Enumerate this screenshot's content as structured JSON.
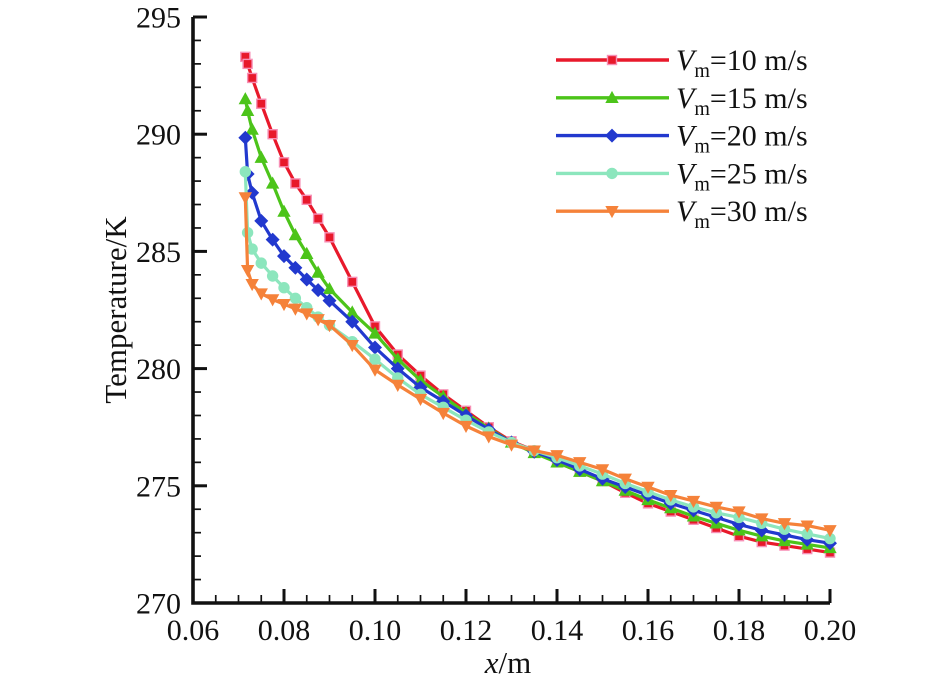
{
  "chart_data": {
    "type": "line",
    "title": "",
    "xlabel_var": "x",
    "xlabel_unit": "/m",
    "ylabel": "Temperature/K",
    "xlim": [
      0.06,
      0.2
    ],
    "ylim": [
      270,
      295
    ],
    "grid": "off",
    "legend_position": "top-right",
    "x_major_ticks": [
      0.06,
      0.08,
      0.1,
      0.12,
      0.14,
      0.16,
      0.18,
      0.2
    ],
    "x_tick_labels": [
      "0.06",
      "0.08",
      "0.10",
      "0.12",
      "0.14",
      "0.16",
      "0.18",
      "0.20"
    ],
    "x_minor_step": 0.005,
    "y_major_ticks": [
      270,
      275,
      280,
      285,
      290,
      295
    ],
    "y_tick_labels": [
      "270",
      "275",
      "280",
      "285",
      "290",
      "295"
    ],
    "y_minor_step": 1,
    "x": [
      0.0715,
      0.072,
      0.073,
      0.075,
      0.0775,
      0.08,
      0.0825,
      0.085,
      0.0875,
      0.09,
      0.095,
      0.1,
      0.105,
      0.11,
      0.115,
      0.12,
      0.125,
      0.13,
      0.135,
      0.14,
      0.145,
      0.15,
      0.155,
      0.16,
      0.165,
      0.17,
      0.175,
      0.18,
      0.185,
      0.19,
      0.195,
      0.2
    ],
    "series": [
      {
        "name": "Vm=10 m/s",
        "label_var": "V",
        "label_sub": "m",
        "label_rest": "=10 m/s",
        "color": "#E8192B",
        "marker": "square",
        "marker_edge": "#F78FB5",
        "values": [
          293.3,
          293.0,
          292.4,
          291.3,
          290.0,
          288.8,
          287.9,
          287.2,
          286.4,
          285.6,
          283.7,
          281.8,
          280.6,
          279.7,
          278.9,
          278.2,
          277.5,
          276.9,
          276.5,
          276.0,
          275.6,
          275.2,
          274.7,
          274.25,
          273.9,
          273.55,
          273.2,
          272.85,
          272.6,
          272.45,
          272.3,
          272.15
        ]
      },
      {
        "name": "Vm=15 m/s",
        "label_var": "V",
        "label_sub": "m",
        "label_rest": "=15 m/s",
        "color": "#4CC41A",
        "marker": "triangle-up",
        "marker_edge": "#4CC41A",
        "values": [
          291.5,
          291.0,
          290.2,
          289.0,
          287.9,
          286.7,
          285.7,
          284.9,
          284.1,
          283.4,
          282.4,
          281.5,
          280.4,
          279.5,
          278.8,
          278.1,
          277.45,
          276.85,
          276.4,
          276.0,
          275.6,
          275.2,
          274.8,
          274.4,
          274.05,
          273.7,
          273.4,
          273.1,
          272.85,
          272.65,
          272.5,
          272.35
        ]
      },
      {
        "name": "Vm=20 m/s",
        "label_var": "V",
        "label_sub": "m",
        "label_rest": "=20 m/s",
        "color": "#2239CE",
        "marker": "diamond",
        "marker_edge": "#2239CE",
        "values": [
          289.85,
          288.3,
          287.5,
          286.3,
          285.5,
          284.8,
          284.3,
          283.8,
          283.35,
          282.9,
          282.0,
          280.9,
          280.0,
          279.2,
          278.6,
          278.0,
          277.4,
          276.85,
          276.45,
          276.1,
          275.7,
          275.3,
          274.95,
          274.6,
          274.25,
          273.95,
          273.65,
          273.35,
          273.1,
          272.9,
          272.7,
          272.55
        ]
      },
      {
        "name": "Vm=25 m/s",
        "label_var": "V",
        "label_sub": "m",
        "label_rest": "=25 m/s",
        "color": "#8CE6BD",
        "marker": "circle",
        "marker_edge": "#8CE6BD",
        "values": [
          288.4,
          285.8,
          285.1,
          284.5,
          283.95,
          283.45,
          283.0,
          282.6,
          282.2,
          281.85,
          281.15,
          280.4,
          279.6,
          278.9,
          278.35,
          277.8,
          277.3,
          276.85,
          276.5,
          276.2,
          275.85,
          275.5,
          275.1,
          274.75,
          274.4,
          274.1,
          273.85,
          273.65,
          273.4,
          273.15,
          272.95,
          272.75
        ]
      },
      {
        "name": "Vm=30 m/s",
        "label_var": "V",
        "label_sub": "m",
        "label_rest": "=30 m/s",
        "color": "#F5823A",
        "marker": "triangle-down",
        "marker_edge": "#F5823A",
        "values": [
          287.3,
          284.2,
          283.6,
          283.2,
          282.95,
          282.75,
          282.55,
          282.35,
          282.1,
          281.85,
          281.0,
          279.95,
          279.3,
          278.7,
          278.1,
          277.55,
          277.1,
          276.75,
          276.5,
          276.3,
          276.0,
          275.7,
          275.3,
          274.95,
          274.6,
          274.35,
          274.1,
          273.9,
          273.6,
          273.4,
          273.3,
          273.1
        ]
      }
    ]
  }
}
